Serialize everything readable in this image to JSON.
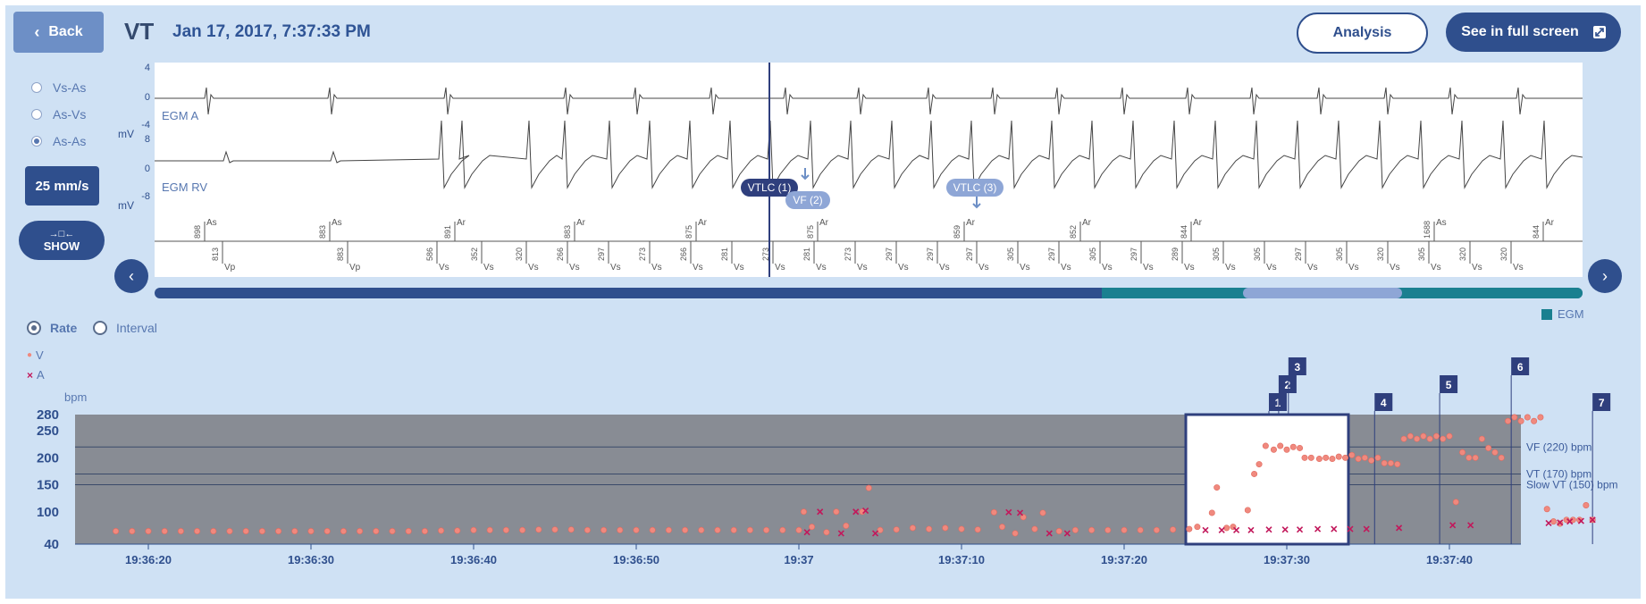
{
  "header": {
    "back_label": "Back",
    "title": "VT",
    "datetime": "Jan 17, 2017, 7:37:33 PM",
    "analysis_label": "Analysis",
    "fullscreen_label": "See in full screen"
  },
  "sidebar": {
    "interval_options": [
      "Vs-As",
      "As-Vs",
      "As-As"
    ],
    "selected_option": "As-As",
    "speed_label": "25 mm/s",
    "show_label": "SHOW"
  },
  "egm": {
    "channels": [
      {
        "name": "EGM A",
        "unit": "mV",
        "ticks": [
          "4",
          "0",
          "-4"
        ]
      },
      {
        "name": "EGM RV",
        "unit": "mV",
        "ticks": [
          "8",
          "0",
          "-8"
        ]
      }
    ],
    "annotations": [
      "VTLC (1)",
      "VF (2)",
      "VTLC (3)"
    ],
    "atrial_markers": [
      {
        "label": "As",
        "interval": "898"
      },
      {
        "label": "As",
        "interval": "883"
      },
      {
        "label": "Ar",
        "interval": "891"
      },
      {
        "label": "Ar",
        "interval": "883"
      },
      {
        "label": "Ar",
        "interval": "875"
      },
      {
        "label": "Ar",
        "interval": "875"
      },
      {
        "label": "Ar",
        "interval": "859"
      },
      {
        "label": "Ar",
        "interval": "852"
      },
      {
        "label": "Ar",
        "interval": "844"
      },
      {
        "label": "As",
        "interval": "1688"
      },
      {
        "label": "Ar",
        "interval": "844"
      }
    ],
    "ventricular_markers": [
      {
        "label": "Vp",
        "interval": "813"
      },
      {
        "label": "Vp",
        "interval": "883"
      },
      {
        "label": "Vs",
        "interval": "586"
      },
      {
        "label": "Vs",
        "interval": "352"
      },
      {
        "label": "Vs",
        "interval": "320"
      },
      {
        "label": "Vs",
        "interval": "266"
      },
      {
        "label": "Vs",
        "interval": "297"
      },
      {
        "label": "Vs",
        "interval": "273"
      },
      {
        "label": "Vs",
        "interval": "266"
      },
      {
        "label": "Vs",
        "interval": "281"
      },
      {
        "label": "Vs",
        "interval": "273"
      },
      {
        "label": "Vs",
        "interval": "281"
      },
      {
        "label": "Vs",
        "interval": "273"
      },
      {
        "label": "Vs",
        "interval": "297"
      },
      {
        "label": "Vs",
        "interval": "297"
      },
      {
        "label": "Vs",
        "interval": "297"
      },
      {
        "label": "Vs",
        "interval": "305"
      },
      {
        "label": "Vs",
        "interval": "297"
      },
      {
        "label": "Vs",
        "interval": "305"
      },
      {
        "label": "Vs",
        "interval": "297"
      },
      {
        "label": "Vs",
        "interval": "289"
      },
      {
        "label": "Vs",
        "interval": "305"
      },
      {
        "label": "Vs",
        "interval": "305"
      },
      {
        "label": "Vs",
        "interval": "297"
      },
      {
        "label": "Vs",
        "interval": "305"
      },
      {
        "label": "Vs",
        "interval": "320"
      },
      {
        "label": "Vs",
        "interval": "305"
      },
      {
        "label": "Vs",
        "interval": "320"
      },
      {
        "label": "Vs",
        "interval": "320"
      }
    ],
    "egm_legend": "EGM"
  },
  "trend": {
    "mode_options": [
      "Rate",
      "Interval"
    ],
    "selected_mode": "Rate",
    "legend": [
      {
        "symbol": "o",
        "label": "V",
        "color": "#f0897e"
      },
      {
        "symbol": "x",
        "label": "A",
        "color": "#c2185b"
      }
    ],
    "unit": "bpm",
    "y_ticks": [
      "280",
      "250",
      "200",
      "150",
      "100",
      "40"
    ],
    "x_ticks": [
      "19:36:20",
      "19:36:30",
      "19:36:40",
      "19:36:50",
      "19:37",
      "19:37:10",
      "19:37:20",
      "19:37:30",
      "19:37:40"
    ],
    "zones": [
      {
        "label": "VF (220) bpm",
        "value": 220
      },
      {
        "label": "VT (170) bpm",
        "value": 170
      },
      {
        "label": "Slow VT (150) bpm",
        "value": 150
      }
    ],
    "flags": [
      "1",
      "2",
      "3",
      "4",
      "5",
      "6",
      "7"
    ]
  },
  "colors": {
    "panel": "#cfe1f4",
    "primary": "#2f4f8d",
    "trend_bg": "#888c94",
    "teal": "#1a8090",
    "v_dot": "#f0897e",
    "a_cross": "#c2185b"
  },
  "chart_data": {
    "type": "scatter",
    "title": "",
    "xlabel": "",
    "ylabel": "bpm",
    "ylim": [
      40,
      280
    ],
    "x_unit": "seconds after 19:36:20",
    "series": [
      {
        "name": "V",
        "points": [
          [
            -2,
            64
          ],
          [
            -1,
            64
          ],
          [
            0,
            64
          ],
          [
            1,
            64
          ],
          [
            2,
            64
          ],
          [
            3,
            64
          ],
          [
            4,
            64
          ],
          [
            5,
            64
          ],
          [
            6,
            64
          ],
          [
            7,
            64
          ],
          [
            8,
            64
          ],
          [
            9,
            64
          ],
          [
            10,
            64
          ],
          [
            11,
            64
          ],
          [
            12,
            64
          ],
          [
            13,
            64
          ],
          [
            14,
            64
          ],
          [
            15,
            64
          ],
          [
            16,
            64
          ],
          [
            17,
            64
          ],
          [
            18,
            65
          ],
          [
            19,
            65
          ],
          [
            20,
            66
          ],
          [
            21,
            66
          ],
          [
            22,
            66
          ],
          [
            23,
            66
          ],
          [
            24,
            67
          ],
          [
            25,
            67
          ],
          [
            26,
            67
          ],
          [
            27,
            66
          ],
          [
            28,
            66
          ],
          [
            29,
            66
          ],
          [
            30,
            66
          ],
          [
            31,
            66
          ],
          [
            32,
            66
          ],
          [
            33,
            66
          ],
          [
            34,
            66
          ],
          [
            35,
            66
          ],
          [
            36,
            66
          ],
          [
            37,
            66
          ],
          [
            38,
            66
          ],
          [
            39,
            66
          ],
          [
            40,
            66
          ],
          [
            40.3,
            100
          ],
          [
            40.8,
            72
          ],
          [
            41.7,
            62
          ],
          [
            42.3,
            100
          ],
          [
            42.9,
            74
          ],
          [
            43.9,
            100
          ],
          [
            44.3,
            144
          ],
          [
            45,
            66
          ],
          [
            46,
            67
          ],
          [
            47,
            70
          ],
          [
            48,
            68
          ],
          [
            49,
            70
          ],
          [
            50,
            68
          ],
          [
            51,
            67
          ],
          [
            52,
            99
          ],
          [
            52.5,
            72
          ],
          [
            53.3,
            60
          ],
          [
            53.8,
            90
          ],
          [
            54.5,
            68
          ],
          [
            55,
            98
          ],
          [
            56,
            64
          ],
          [
            57,
            66
          ],
          [
            58,
            66
          ],
          [
            59,
            66
          ],
          [
            60,
            66
          ],
          [
            61,
            66
          ],
          [
            62,
            66
          ],
          [
            63,
            67
          ],
          [
            64,
            68
          ],
          [
            64.5,
            72
          ],
          [
            65.4,
            98
          ],
          [
            65.7,
            145
          ],
          [
            66.3,
            70
          ],
          [
            66.7,
            72
          ],
          [
            67.6,
            103
          ],
          [
            68,
            170
          ],
          [
            68.3,
            188
          ],
          [
            68.7,
            222
          ],
          [
            69.2,
            215
          ],
          [
            69.6,
            222
          ],
          [
            70,
            215
          ],
          [
            70.4,
            220
          ],
          [
            70.8,
            218
          ],
          [
            71.1,
            200
          ],
          [
            71.5,
            200
          ],
          [
            72,
            198
          ],
          [
            72.4,
            200
          ],
          [
            72.8,
            198
          ],
          [
            73.2,
            202
          ],
          [
            73.6,
            200
          ],
          [
            74,
            205
          ],
          [
            74.4,
            198
          ],
          [
            74.8,
            200
          ],
          [
            75.2,
            195
          ],
          [
            75.6,
            200
          ],
          [
            76,
            190
          ],
          [
            76.4,
            190
          ],
          [
            76.8,
            188
          ],
          [
            77.2,
            235
          ],
          [
            77.6,
            240
          ],
          [
            78,
            235
          ],
          [
            78.4,
            240
          ],
          [
            78.8,
            235
          ],
          [
            79.2,
            240
          ],
          [
            79.6,
            235
          ],
          [
            80,
            240
          ],
          [
            80.4,
            118
          ],
          [
            80.8,
            210
          ],
          [
            81.2,
            200
          ],
          [
            81.6,
            200
          ],
          [
            82,
            235
          ],
          [
            82.4,
            218
          ],
          [
            82.8,
            210
          ],
          [
            83.2,
            200
          ],
          [
            83.6,
            268
          ],
          [
            84,
            275
          ],
          [
            84.4,
            268
          ],
          [
            84.8,
            275
          ],
          [
            85.2,
            268
          ],
          [
            85.6,
            275
          ],
          [
            86,
            105
          ],
          [
            86.4,
            82
          ],
          [
            86.8,
            78
          ],
          [
            87.2,
            85
          ],
          [
            87.6,
            85
          ],
          [
            88,
            85
          ],
          [
            88.4,
            112
          ],
          [
            88.8,
            85
          ]
        ]
      },
      {
        "name": "A",
        "points": [
          [
            40.5,
            62
          ],
          [
            41.3,
            100
          ],
          [
            42.6,
            60
          ],
          [
            43.5,
            100
          ],
          [
            44.1,
            102
          ],
          [
            44.7,
            60
          ],
          [
            52.9,
            99
          ],
          [
            53.6,
            98
          ],
          [
            55.4,
            60
          ],
          [
            56.5,
            60
          ],
          [
            65,
            66
          ],
          [
            66,
            66
          ],
          [
            66.9,
            66
          ],
          [
            67.8,
            66
          ],
          [
            68.9,
            67
          ],
          [
            69.9,
            67
          ],
          [
            70.8,
            67
          ],
          [
            71.9,
            68
          ],
          [
            72.9,
            68
          ],
          [
            73.9,
            68
          ],
          [
            74.9,
            68
          ],
          [
            76.9,
            70
          ],
          [
            80.2,
            75
          ],
          [
            81.3,
            75
          ],
          [
            86.1,
            79
          ],
          [
            86.8,
            80
          ],
          [
            87.4,
            82
          ],
          [
            88.1,
            83
          ],
          [
            88.8,
            85
          ]
        ]
      }
    ]
  }
}
